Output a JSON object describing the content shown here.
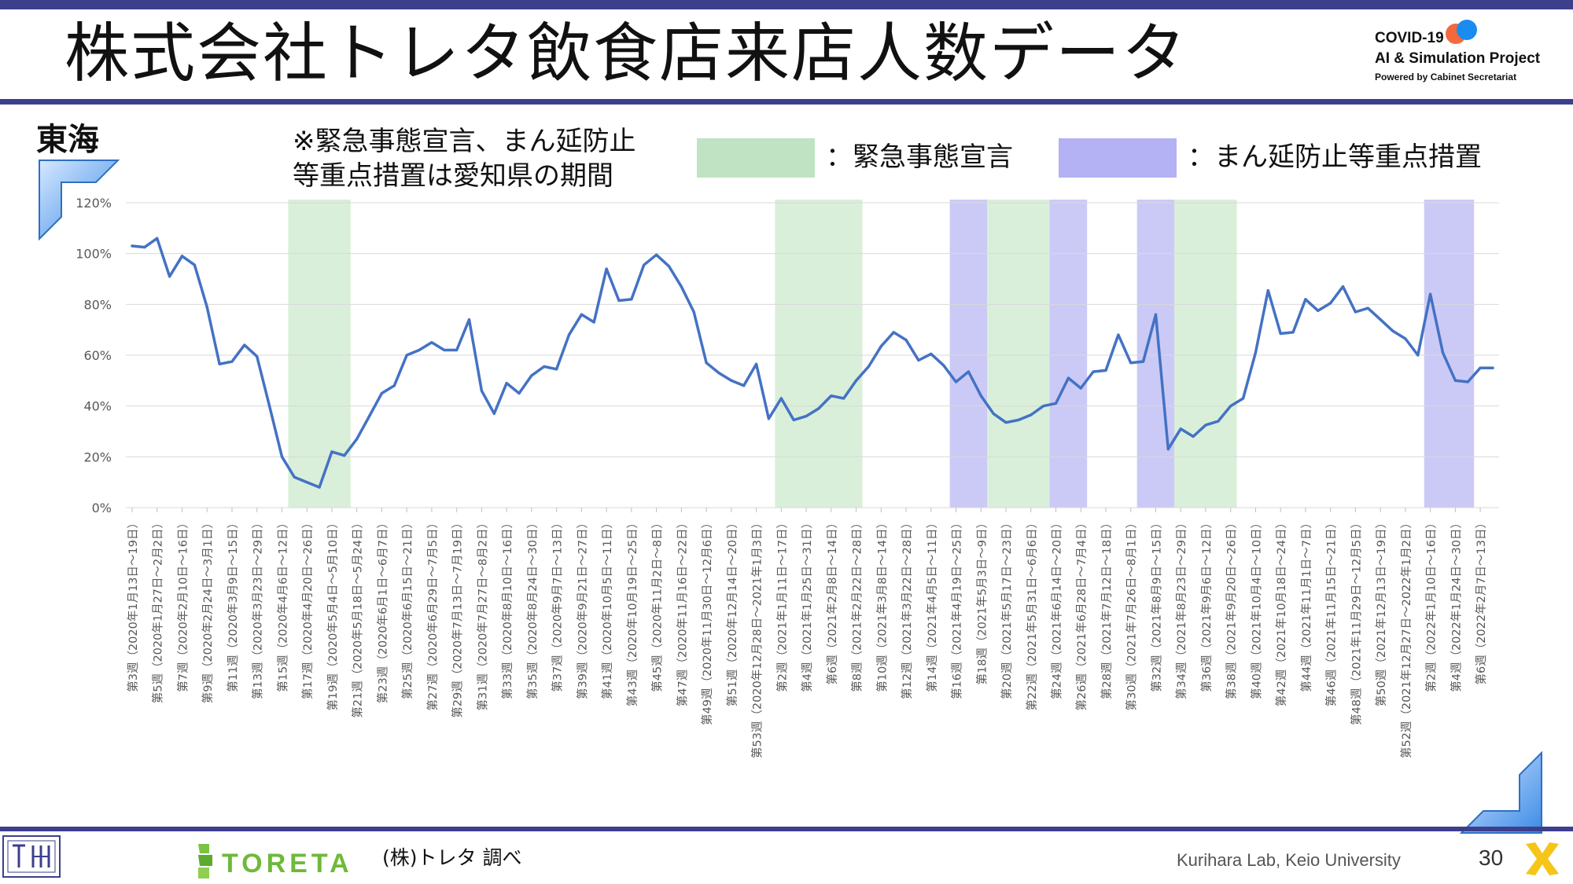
{
  "title": "株式会社トレタ飲食店来店人数データ",
  "project": {
    "line1": "COVID-19",
    "line2": "AI & Simulation Project",
    "line3": "Powered by Cabinet Secretariat"
  },
  "region": "東海",
  "note": {
    "line1": "※緊急事態宣言、まん延防止",
    "line2": "等重点措置は愛知県の期間"
  },
  "legend": {
    "emergency_label": "：緊急事態宣言",
    "priority_label": "：まん延防止等重点措置",
    "emergency_color": "#d9efd9",
    "priority_color": "#cbcaf6",
    "emergency_swatch_color": "#bfe3c3",
    "priority_swatch_color": "#b4b2f4"
  },
  "footer": {
    "brand": "TORETA",
    "source": "(株)トレタ 調べ",
    "lab": "Kurihara Lab, Keio University",
    "page": "30"
  },
  "chart_data": {
    "type": "line",
    "line_color": "#4472c4",
    "grid": true,
    "ylim": [
      0,
      120
    ],
    "yticks": [
      0,
      20,
      40,
      60,
      80,
      100,
      120
    ],
    "ytick_labels": [
      "0%",
      "20%",
      "40%",
      "60%",
      "80%",
      "100%",
      "120%"
    ],
    "series": [
      {
        "values": [
          103,
          102.5,
          106,
          91,
          99,
          95.5,
          79,
          56.5,
          57.5,
          64,
          59.5,
          40,
          20,
          12,
          10,
          8,
          22,
          20.5,
          27,
          36,
          45,
          48,
          60,
          62,
          65,
          62,
          62,
          74,
          46,
          37,
          49,
          45,
          52,
          55.5,
          54.5,
          68,
          76,
          73,
          94,
          81.5,
          82,
          95.5,
          99.5,
          95,
          87,
          77,
          57,
          53,
          50,
          48,
          56.5,
          35,
          43,
          34.5,
          36,
          39,
          44,
          43,
          50,
          55.5,
          63.5,
          69,
          66,
          58,
          60.5,
          56,
          49.5,
          53.5,
          44,
          37,
          33.5,
          34.5,
          36.5,
          40,
          41,
          51,
          47,
          53.5,
          54,
          68,
          57,
          57.5,
          76,
          23,
          31,
          28,
          32.5,
          34,
          40,
          43,
          61,
          85.5,
          68.5,
          69,
          82,
          77.5,
          80.5,
          87,
          77,
          78.5,
          74,
          69.5,
          66.5,
          60,
          84,
          61,
          50,
          49.5,
          55,
          55
        ]
      }
    ],
    "x_labels_every_second_week": [
      "第3週（2020年1月13日～19日）",
      "第5週（2020年1月27日～2月2日）",
      "第7週（2020年2月10日～16日）",
      "第9週（2020年2月24日～3月1日）",
      "第11週（2020年3月9日～15日）",
      "第13週（2020年3月23日～29日）",
      "第15週（2020年4月6日～12日）",
      "第17週（2020年4月20日～26日）",
      "第19週（2020年5月4日～5月10日）",
      "第21週（2020年5月18日～5月24日）",
      "第23週（2020年6月1日～6月7日）",
      "第25週（2020年6月15日～21日）",
      "第27週（2020年6月29日～7月5日）",
      "第29週（2020年7月13日～7月19日）",
      "第31週（2020年7月27日～8月2日）",
      "第33週（2020年8月10日～16日）",
      "第35週（2020年8月24日～30日）",
      "第37週（2020年9月7日～13日）",
      "第39週（2020年9月21日～27日）",
      "第41週（2020年10月5日～11日）",
      "第43週（2020年10月19日～25日）",
      "第45週（2020年11月2日～8日）",
      "第47週（2020年11月16日～22日）",
      "第49週（2020年11月30日～12月6日）",
      "第51週（2020年12月14日～20日）",
      "第53週（2020年12月28日～2021年1月3日）",
      "第2週（2021年1月11日～17日）",
      "第4週（2021年1月25日～31日）",
      "第6週（2021年2月8日～14日）",
      "第8週（2021年2月22日～28日）",
      "第10週（2021年3月8日～14日）",
      "第12週（2021年3月22日～28日）",
      "第14週（2021年4月5日～11日）",
      "第16週（2021年4月19日～25日）",
      "第18週（2021年5月3日～9日）",
      "第20週（2021年5月17日～23日）",
      "第22週（2021年5月31日～6月6日）",
      "第24週（2021年6月14日～20日）",
      "第26週（2021年6月28日～7月4日）",
      "第28週（2021年7月12日～18日）",
      "第30週（2021年7月26日～8月1日）",
      "第32週（2021年8月9日～15日）",
      "第34週（2021年8月23日～29日）",
      "第36週（2021年9月6日～12日）",
      "第38週（2021年9月20日～26日）",
      "第40週（2021年10月4日～10日）",
      "第42週（2021年10月18日～24日）",
      "第44週（2021年11月1日～7日）",
      "第46週（2021年11月15日～21日）",
      "第48週（2021年11月29日～12月5日）",
      "第50週（2021年12月13日～19日）",
      "第52週（2021年12月27日～2022年1月2日）",
      "第2週（2022年1月10日～16日）",
      "第4週（2022年1月24日～30日）",
      "第6週（2022年2月7日～13日）"
    ],
    "bands": [
      {
        "type": "emergency",
        "from_index": 13,
        "to_index": 17
      },
      {
        "type": "emergency",
        "from_index": 52,
        "to_index": 58
      },
      {
        "type": "priority",
        "from_index": 66,
        "to_index": 68
      },
      {
        "type": "emergency",
        "from_index": 69,
        "to_index": 73
      },
      {
        "type": "priority",
        "from_index": 74,
        "to_index": 76
      },
      {
        "type": "priority",
        "from_index": 81,
        "to_index": 83
      },
      {
        "type": "emergency",
        "from_index": 84,
        "to_index": 88
      },
      {
        "type": "priority",
        "from_index": 104,
        "to_index": 107
      }
    ]
  }
}
